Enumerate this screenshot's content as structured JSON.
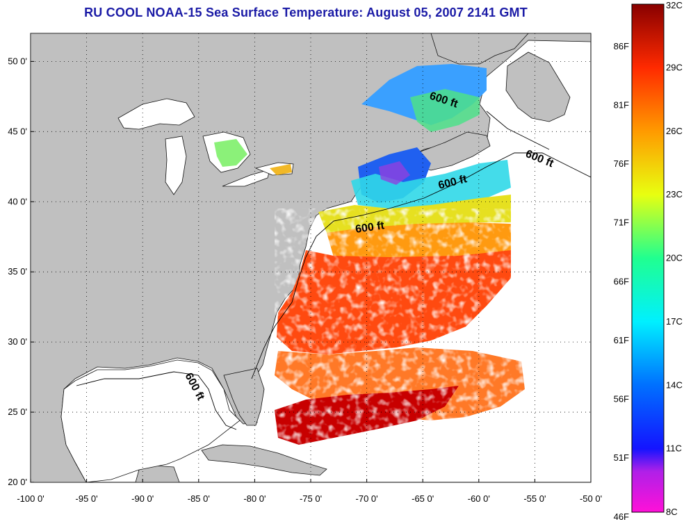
{
  "title": "RU COOL  NOAA-15  Sea Surface Temperature:  August 05, 2007 2141 GMT",
  "map": {
    "lon_range": [
      -100,
      -50
    ],
    "lat_range": [
      20,
      52
    ],
    "x_ticks": [
      "-100 0'",
      "-95 0'",
      "-90 0'",
      "-85 0'",
      "-80 0'",
      "-75 0'",
      "-70 0'",
      "-65 0'",
      "-60 0'",
      "-55 0'",
      "-50 0'"
    ],
    "y_ticks": [
      "50 0'",
      "45 0'",
      "40 0'",
      "35 0'",
      "30 0'",
      "25 0'",
      "20 0'"
    ],
    "grid": "dotted",
    "colors": {
      "land": "#c0c0c0",
      "cloud_or_nodata": "#ffffff",
      "frame": "#000000"
    },
    "isobath_labels": [
      "600 ft",
      "600 ft",
      "600 ft",
      "600 ft",
      "600 ft"
    ]
  },
  "colorbar": {
    "celsius_labels": [
      "32C",
      "29C",
      "26C",
      "23C",
      "20C",
      "17C",
      "14C",
      "11C",
      "8C"
    ],
    "fahrenheit_labels": [
      "86F",
      "81F",
      "76F",
      "71F",
      "66F",
      "61F",
      "56F",
      "51F",
      "46F"
    ],
    "colormap": "jet with magenta low end",
    "range_c": [
      8,
      32
    ]
  }
}
